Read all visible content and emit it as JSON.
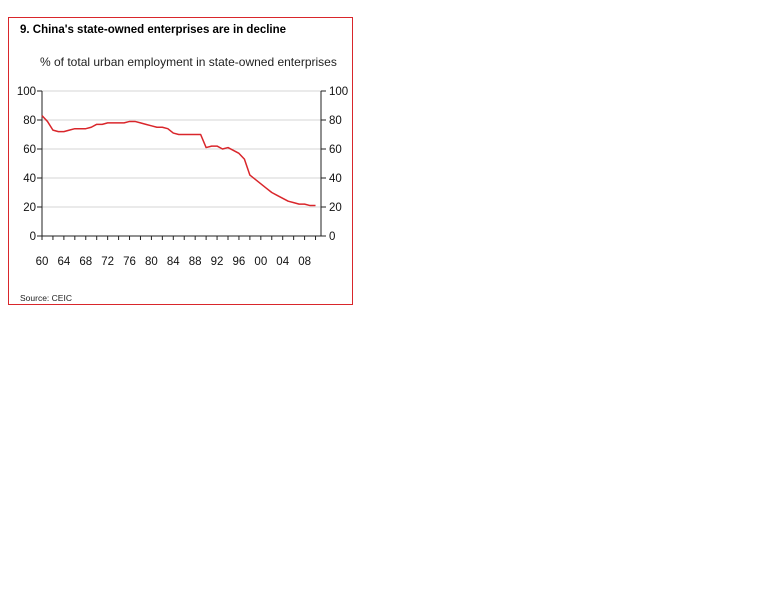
{
  "chart_data": {
    "type": "line",
    "title": "9. China's state-owned enterprises are in decline",
    "subtitle": "% of total urban employment in state-owned enterprises",
    "source": "Source: CEIC",
    "xlabel": "",
    "ylabel": "",
    "xlim": [
      1960,
      2011
    ],
    "ylim": [
      0,
      100
    ],
    "y_ticks": [
      0,
      20,
      40,
      60,
      80,
      100
    ],
    "x_tick_labels": [
      "60",
      "64",
      "68",
      "72",
      "76",
      "80",
      "84",
      "88",
      "92",
      "96",
      "00",
      "04",
      "08"
    ],
    "x_tick_years": [
      1960,
      1964,
      1968,
      1972,
      1976,
      1980,
      1984,
      1988,
      1992,
      1996,
      2000,
      2004,
      2008
    ],
    "grid": true,
    "legend": "none",
    "line_color": "#d9262b",
    "series": [
      {
        "x": [
          1960,
          1961,
          1962,
          1963,
          1964,
          1965,
          1966,
          1967,
          1968,
          1969,
          1970,
          1971,
          1972,
          1973,
          1974,
          1975,
          1976,
          1977,
          1978,
          1979,
          1980,
          1981,
          1982,
          1983,
          1984,
          1985,
          1986,
          1987,
          1988,
          1989,
          1990,
          1991,
          1992,
          1993,
          1994,
          1995,
          1996,
          1997,
          1998,
          1999,
          2000,
          2001,
          2002,
          2003,
          2004,
          2005,
          2006,
          2007,
          2008,
          2009,
          2010
        ],
        "values": [
          83,
          79,
          73,
          72,
          72,
          73,
          74,
          74,
          74,
          75,
          77,
          77,
          78,
          78,
          78,
          78,
          79,
          79,
          78,
          77,
          76,
          75,
          75,
          74,
          71,
          70,
          70,
          70,
          70,
          70,
          61,
          62,
          62,
          60,
          61,
          59,
          57,
          53,
          42,
          39,
          36,
          33,
          30,
          28,
          26,
          24,
          23,
          22,
          22,
          21,
          21
        ]
      }
    ]
  }
}
